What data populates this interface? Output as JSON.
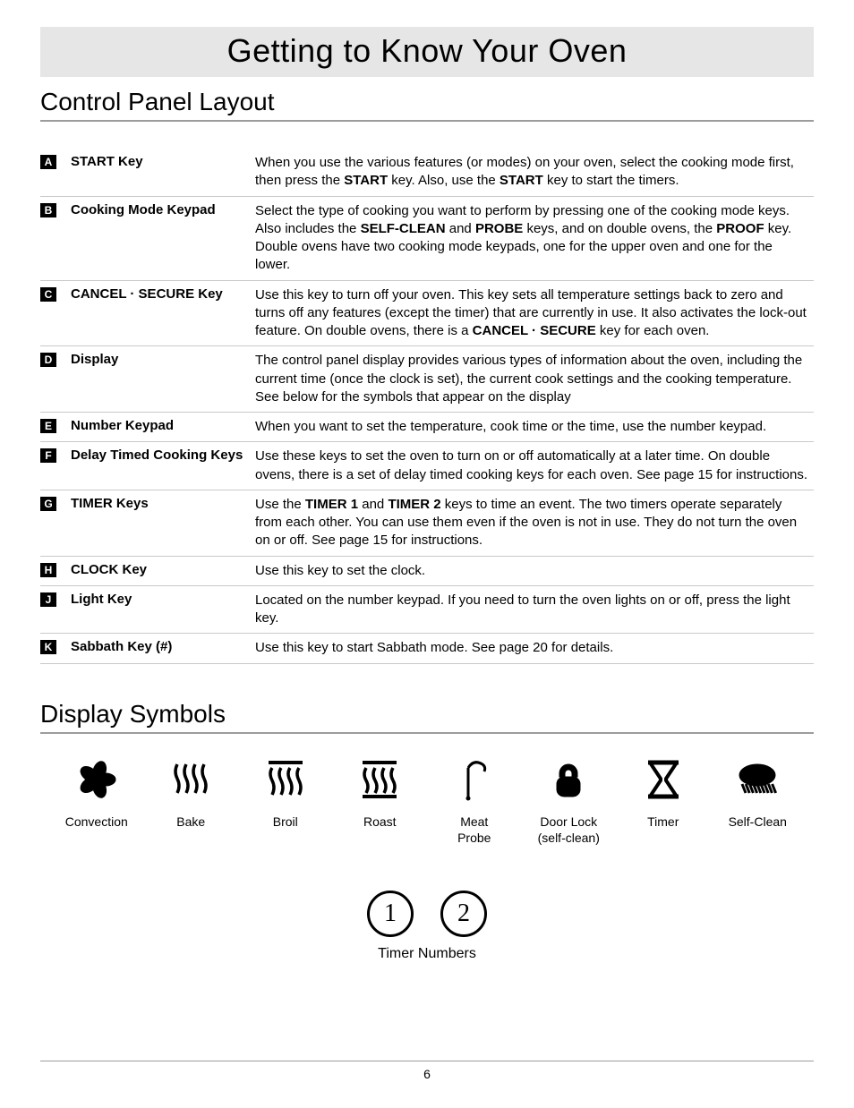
{
  "page": {
    "title": "Getting to Know Your Oven",
    "section1": "Control Panel Layout",
    "section2": "Display Symbols",
    "pageNumber": "6"
  },
  "rows": [
    {
      "tag": "A",
      "name": "START Key",
      "desc": "When you use the various features (or modes) on your oven, select the cooking mode first, then press the <b>START</b> key. Also, use the <b>START</b> key to start the timers."
    },
    {
      "tag": "B",
      "name": "Cooking Mode Keypad",
      "desc": "Select the type of cooking you want to perform by pressing one of the cooking mode keys. Also includes the <b>SELF-CLEAN</b> and <b>PROBE</b> keys, and on double ovens, the <b>PROOF</b> key. Double ovens have two cooking mode keypads, one for the upper oven and one for the lower."
    },
    {
      "tag": "C",
      "name": "CANCEL · SECURE Key",
      "desc": "Use this key to turn off your oven. This key sets all temperature settings back to zero and turns off any features (except the timer) that are currently in use. It also activates the lock-out feature. On double ovens, there is a <b>CANCEL · SECURE</b> key for each oven."
    },
    {
      "tag": "D",
      "name": "Display",
      "desc": "The control panel display provides various types of information about the oven, including the current time (once the clock is set), the current cook settings and the cooking temperature. See below for the symbols that appear on the display"
    },
    {
      "tag": "E",
      "name": "Number Keypad",
      "desc": "When you want to set the temperature, cook time or the time, use the number keypad."
    },
    {
      "tag": "F",
      "name": "Delay Timed Cooking Keys",
      "desc": "Use these keys to set the oven to turn on or off automatically at a later time. On double ovens, there is a set of delay timed cooking keys for each oven. See page 15 for instructions."
    },
    {
      "tag": "G",
      "name": "TIMER Keys",
      "desc": "Use the <b>TIMER 1</b> and <b>TIMER 2</b> keys to time an event. The two timers operate separately from each other. You can use them even if the oven is not in use. They do not turn the oven on or off. See page 15 for instructions."
    },
    {
      "tag": "H",
      "name": "CLOCK Key",
      "desc": "Use this key to set the clock."
    },
    {
      "tag": "J",
      "name": "Light Key",
      "desc": "Located on the number keypad. If you need to turn the oven lights on or off, press the light key."
    },
    {
      "tag": "K",
      "name": "Sabbath Key (#)",
      "desc": "Use this key to start Sabbath mode. See page 20 for details."
    }
  ],
  "symbols": [
    {
      "id": "convection",
      "label": "Convection"
    },
    {
      "id": "bake",
      "label": "Bake"
    },
    {
      "id": "broil",
      "label": "Broil"
    },
    {
      "id": "roast",
      "label": "Roast"
    },
    {
      "id": "meatprobe",
      "label": "Meat\nProbe"
    },
    {
      "id": "doorlock",
      "label": "Door Lock\n(self-clean)"
    },
    {
      "id": "timer",
      "label": "Timer"
    },
    {
      "id": "selfclean",
      "label": "Self-Clean"
    }
  ],
  "timerNumbers": {
    "n1": "1",
    "n2": "2",
    "label": "Timer Numbers"
  },
  "style": {
    "bandBg": "#e6e6e6",
    "ruleColor": "#9c9c9c",
    "rowBorder": "#c9c9c9",
    "titleFontSize": 36,
    "sectionFontSize": 28,
    "bodyFontSize": 15,
    "symbolLabelFontSize": 14
  }
}
